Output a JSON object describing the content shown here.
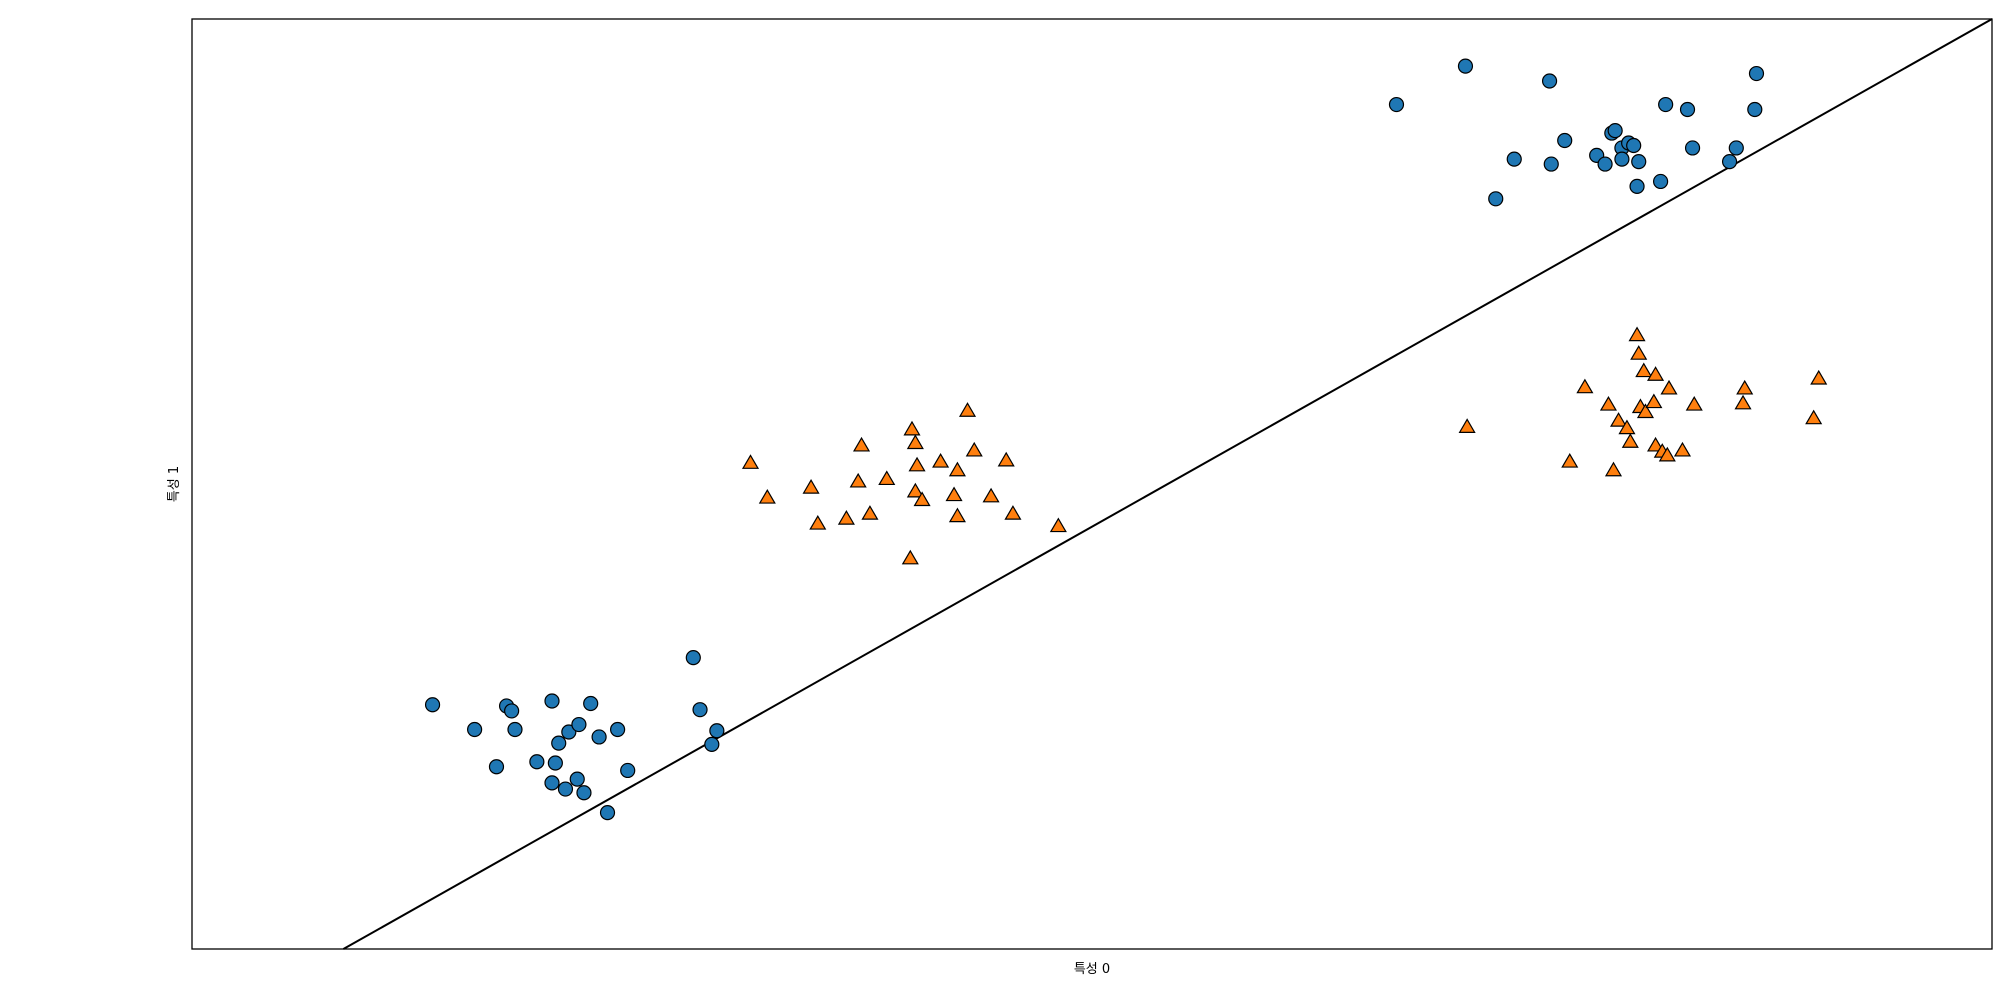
{
  "chart_data": {
    "type": "scatter",
    "title": "",
    "xlabel": "특성 0",
    "ylabel": "특성 1",
    "xlim": [
      -1.5,
      9.2
    ],
    "ylim": [
      -2.0,
      5.5
    ],
    "xticks": [],
    "yticks": [],
    "grid": false,
    "legend": "none",
    "series": [
      {
        "class": 0,
        "marker": "circle",
        "color": "#1f77b4",
        "points": [
          [
            -0.07,
            -0.03
          ],
          [
            0.18,
            -0.23
          ],
          [
            0.31,
            -0.53
          ],
          [
            0.37,
            -0.04
          ],
          [
            0.4,
            -0.08
          ],
          [
            0.42,
            -0.23
          ],
          [
            0.55,
            -0.49
          ],
          [
            0.64,
            0.0
          ],
          [
            0.66,
            -0.5
          ],
          [
            0.68,
            -0.34
          ],
          [
            0.64,
            -0.66
          ],
          [
            0.72,
            -0.71
          ],
          [
            0.74,
            -0.25
          ],
          [
            0.8,
            -0.19
          ],
          [
            0.79,
            -0.63
          ],
          [
            0.83,
            -0.74
          ],
          [
            0.87,
            -0.02
          ],
          [
            0.92,
            -0.29
          ],
          [
            0.97,
            -0.9
          ],
          [
            1.03,
            -0.23
          ],
          [
            1.09,
            -0.56
          ],
          [
            1.48,
            0.35
          ],
          [
            1.52,
            -0.07
          ],
          [
            1.59,
            -0.35
          ],
          [
            1.62,
            -0.24
          ],
          [
            5.66,
            4.81
          ],
          [
            6.07,
            5.12
          ],
          [
            6.25,
            4.05
          ],
          [
            6.36,
            4.37
          ],
          [
            6.58,
            4.33
          ],
          [
            6.57,
            5.0
          ],
          [
            6.66,
            4.52
          ],
          [
            6.85,
            4.4
          ],
          [
            6.9,
            4.33
          ],
          [
            6.94,
            4.58
          ],
          [
            6.96,
            4.6
          ],
          [
            7.0,
            4.46
          ],
          [
            7.0,
            4.37
          ],
          [
            7.04,
            4.5
          ],
          [
            7.09,
            4.15
          ],
          [
            7.1,
            4.35
          ],
          [
            7.07,
            4.48
          ],
          [
            7.23,
            4.19
          ],
          [
            7.26,
            4.81
          ],
          [
            7.39,
            4.77
          ],
          [
            7.42,
            4.46
          ],
          [
            7.64,
            4.35
          ],
          [
            7.68,
            4.46
          ],
          [
            7.79,
            4.77
          ],
          [
            7.8,
            5.06
          ]
        ]
      },
      {
        "class": 1,
        "marker": "triangle",
        "color": "#ff7f0e",
        "points": [
          [
            1.82,
            1.92
          ],
          [
            1.92,
            1.64
          ],
          [
            2.18,
            1.72
          ],
          [
            2.22,
            1.43
          ],
          [
            2.39,
            1.47
          ],
          [
            2.46,
            1.77
          ],
          [
            2.48,
            2.06
          ],
          [
            2.53,
            1.51
          ],
          [
            2.63,
            1.79
          ],
          [
            2.77,
            1.15
          ],
          [
            2.78,
            2.19
          ],
          [
            2.8,
            2.08
          ],
          [
            2.81,
            1.9
          ],
          [
            2.8,
            1.69
          ],
          [
            2.84,
            1.62
          ],
          [
            2.95,
            1.93
          ],
          [
            3.03,
            1.66
          ],
          [
            3.05,
            1.49
          ],
          [
            3.05,
            1.86
          ],
          [
            3.11,
            2.34
          ],
          [
            3.15,
            2.02
          ],
          [
            3.25,
            1.65
          ],
          [
            3.34,
            1.94
          ],
          [
            3.38,
            1.51
          ],
          [
            3.65,
            1.41
          ],
          [
            6.08,
            2.21
          ],
          [
            6.69,
            1.93
          ],
          [
            6.78,
            2.53
          ],
          [
            6.92,
            2.39
          ],
          [
            6.95,
            1.86
          ],
          [
            6.98,
            2.26
          ],
          [
            7.03,
            2.2
          ],
          [
            7.05,
            2.09
          ],
          [
            7.09,
            2.95
          ],
          [
            7.1,
            2.8
          ],
          [
            7.11,
            2.37
          ],
          [
            7.13,
            2.66
          ],
          [
            7.14,
            2.33
          ],
          [
            7.2,
            2.63
          ],
          [
            7.19,
            2.41
          ],
          [
            7.2,
            2.06
          ],
          [
            7.24,
            2.01
          ],
          [
            7.27,
            1.98
          ],
          [
            7.28,
            2.52
          ],
          [
            7.36,
            2.02
          ],
          [
            7.43,
            2.39
          ],
          [
            7.72,
            2.4
          ],
          [
            7.73,
            2.52
          ],
          [
            8.14,
            2.28
          ],
          [
            8.17,
            2.6
          ]
        ]
      }
    ],
    "lines": [
      {
        "name": "",
        "x": [
          -0.6,
          9.2
        ],
        "y": [
          -2.0,
          5.5
        ],
        "color": "#000000"
      }
    ]
  }
}
